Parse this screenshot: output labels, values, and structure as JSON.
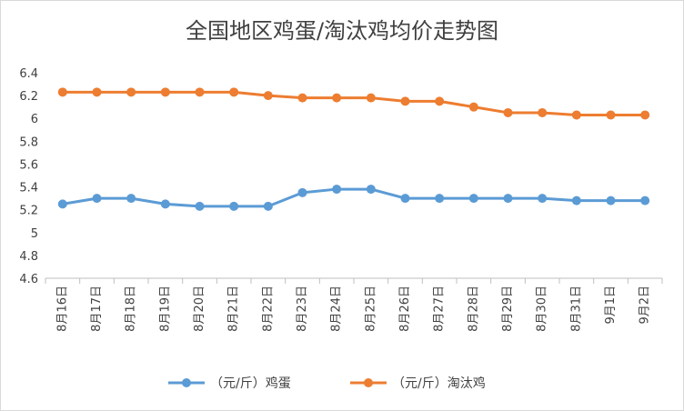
{
  "chart_data": {
    "type": "line",
    "title": "全国地区鸡蛋/淘汰鸡均价走势图",
    "xlabel": "",
    "ylabel": "",
    "categories": [
      "8月16日",
      "8月17日",
      "8月18日",
      "8月19日",
      "8月20日",
      "8月21日",
      "8月22日",
      "8月23日",
      "8月24日",
      "8月25日",
      "8月26日",
      "8月27日",
      "8月28日",
      "8月29日",
      "8月30日",
      "8月31日",
      "9月1日",
      "9月2日"
    ],
    "ylim": [
      4.6,
      6.4
    ],
    "yticks": [
      "4.6",
      "4.8",
      "5",
      "5.2",
      "5.4",
      "5.6",
      "5.8",
      "6",
      "6.2",
      "6.4"
    ],
    "grid": false,
    "legend_position": "bottom",
    "series": [
      {
        "name": "（元/斤）鸡蛋",
        "color": "#5b9bd5",
        "values": [
          5.25,
          5.3,
          5.3,
          5.25,
          5.23,
          5.23,
          5.23,
          5.35,
          5.38,
          5.38,
          5.3,
          5.3,
          5.3,
          5.3,
          5.3,
          5.28,
          5.28,
          5.28
        ]
      },
      {
        "name": "（元/斤）淘汰鸡",
        "color": "#ed7d31",
        "values": [
          6.23,
          6.23,
          6.23,
          6.23,
          6.23,
          6.23,
          6.2,
          6.18,
          6.18,
          6.18,
          6.15,
          6.15,
          6.1,
          6.05,
          6.05,
          6.03,
          6.03,
          6.03
        ]
      }
    ]
  }
}
